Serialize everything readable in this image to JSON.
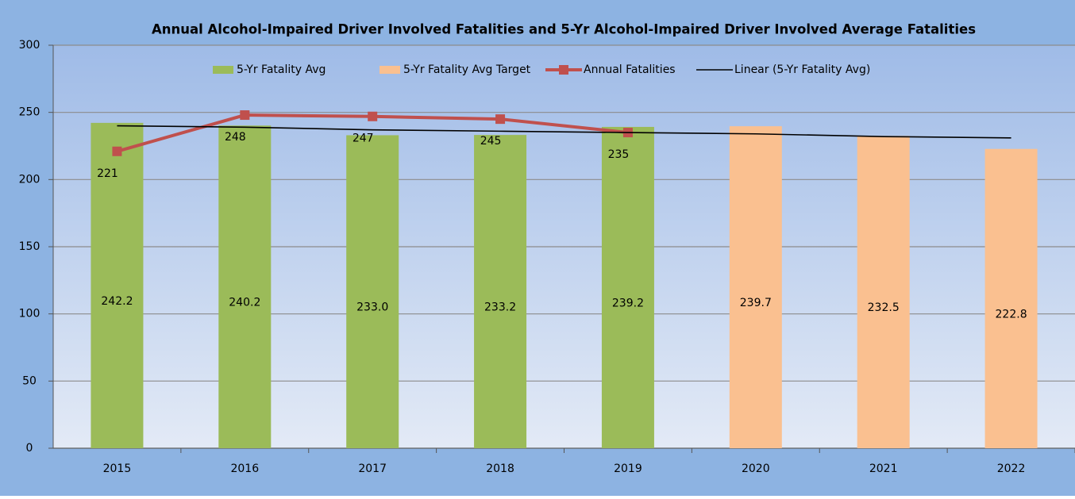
{
  "chart_data": {
    "type": "bar",
    "title": "Annual  Alcohol-Impaired Driver Involved Fatalities and 5-Yr Alcohol-Impaired Driver Involved Average Fatalities",
    "categories": [
      "2015",
      "2016",
      "2017",
      "2018",
      "2019",
      "2020",
      "2021",
      "2022"
    ],
    "series": [
      {
        "name": "5-Yr Fatality Avg",
        "type": "bar",
        "color": "#9bbb59",
        "values": [
          242.2,
          240.2,
          233.0,
          233.2,
          239.2,
          null,
          null,
          null
        ],
        "value_labels": [
          "242.2",
          "240.2",
          "233.0",
          "233.2",
          "239.2",
          null,
          null,
          null
        ]
      },
      {
        "name": "5-Yr Fatality Avg Target",
        "type": "bar",
        "color": "#fac090",
        "values": [
          null,
          null,
          null,
          null,
          null,
          239.7,
          232.5,
          222.8
        ],
        "value_labels": [
          null,
          null,
          null,
          null,
          null,
          "239.7",
          "232.5",
          "222.8"
        ]
      },
      {
        "name": "Annual Fatalities",
        "type": "line",
        "color": "#c0504d",
        "markers": true,
        "labels": true,
        "values": [
          221,
          248,
          247,
          245,
          235,
          null,
          null,
          null
        ]
      },
      {
        "name": "Linear (5-Yr Fatality Avg)",
        "type": "line",
        "color": "#000000",
        "markers": false,
        "labels": false,
        "values": [
          240,
          239,
          237,
          236,
          235,
          234,
          232,
          231
        ]
      }
    ],
    "ylim": [
      0,
      300
    ],
    "yticks": [
      0,
      50,
      100,
      150,
      200,
      250,
      300
    ],
    "grid": true,
    "legend": "top"
  }
}
